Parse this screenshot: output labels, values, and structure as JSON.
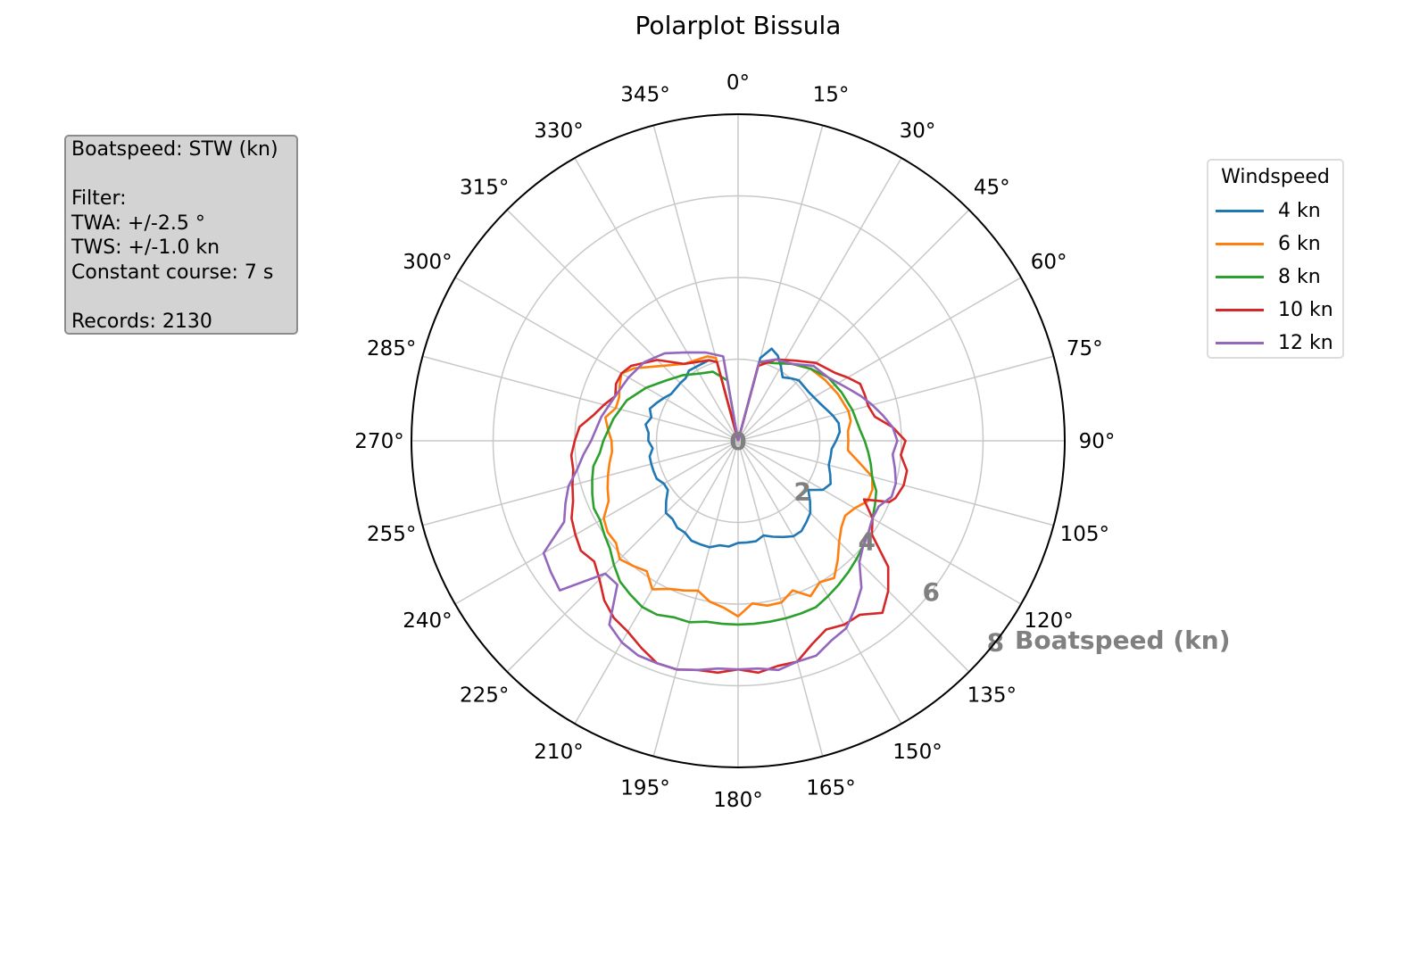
{
  "chart_data": {
    "type": "line",
    "polar": true,
    "title": "Polarplot Bissula",
    "radial_axis_label": "Boatspeed (kn)",
    "radial_ticks": [
      0,
      2,
      4,
      6,
      8
    ],
    "rlim": [
      0,
      8
    ],
    "angle_ticks": [
      "0°",
      "15°",
      "30°",
      "45°",
      "60°",
      "75°",
      "90°",
      "105°",
      "120°",
      "135°",
      "150°",
      "165°",
      "180°",
      "195°",
      "210°",
      "225°",
      "240°",
      "255°",
      "270°",
      "285°",
      "300°",
      "315°",
      "330°",
      "345°"
    ],
    "theta_zero": "top",
    "theta_direction": "clockwise",
    "grid": true,
    "legend": {
      "title": "Windspeed",
      "placement": "right"
    },
    "series": [
      {
        "name": "4 kn",
        "color": "#1f77b4",
        "x": [
          0,
          15,
          20,
          25,
          30,
          35,
          40,
          45,
          55,
          65,
          75,
          80,
          85,
          90,
          95,
          100,
          105,
          110,
          115,
          120,
          125,
          130,
          135,
          140,
          145,
          150,
          155,
          160,
          165,
          170,
          175,
          180,
          185,
          190,
          195,
          200,
          205,
          210,
          215,
          220,
          225,
          230,
          235,
          240,
          245,
          250,
          255,
          260,
          265,
          270,
          275,
          280,
          285,
          290,
          295,
          300,
          305,
          315,
          320,
          325,
          340,
          345,
          360
        ],
        "y": [
          0,
          2.1,
          2.4,
          2.3,
          2.1,
          1.9,
          2.0,
          2.1,
          2.1,
          2.2,
          2.4,
          2.5,
          2.5,
          2.4,
          2.3,
          2.3,
          2.3,
          2.4,
          2.5,
          2.4,
          2.1,
          2.3,
          2.5,
          2.6,
          2.7,
          2.7,
          2.6,
          2.5,
          2.4,
          2.5,
          2.5,
          2.5,
          2.6,
          2.6,
          2.7,
          2.7,
          2.7,
          2.6,
          2.6,
          2.5,
          2.5,
          2.3,
          2.1,
          2.1,
          2.2,
          2.2,
          2.2,
          2.2,
          2.1,
          2.2,
          2.2,
          2.3,
          2.2,
          2.3,
          2.2,
          2.1,
          2.0,
          2.0,
          2.0,
          2.1,
          2.1,
          2.0,
          0
        ]
      },
      {
        "name": "6 kn",
        "color": "#ff7f0e",
        "x": [
          0,
          15,
          25,
          35,
          45,
          55,
          65,
          75,
          80,
          85,
          90,
          95,
          100,
          105,
          110,
          115,
          120,
          125,
          130,
          135,
          140,
          145,
          150,
          155,
          160,
          165,
          170,
          175,
          180,
          185,
          190,
          195,
          200,
          205,
          210,
          215,
          220,
          225,
          230,
          235,
          240,
          245,
          250,
          255,
          260,
          265,
          270,
          275,
          280,
          285,
          290,
          295,
          300,
          305,
          315,
          325,
          340,
          345,
          360
        ],
        "y": [
          0,
          1.9,
          2.2,
          2.3,
          2.5,
          2.6,
          2.7,
          2.8,
          2.8,
          2.7,
          2.7,
          2.7,
          3.0,
          3.4,
          3.5,
          3.5,
          3.3,
          3.2,
          3.3,
          3.5,
          3.8,
          4.1,
          4.0,
          4.2,
          3.9,
          4.1,
          4.1,
          4.0,
          4.3,
          4.1,
          4.0,
          3.8,
          3.9,
          4.0,
          4.2,
          3.9,
          4.0,
          4.1,
          3.9,
          3.9,
          3.8,
          3.5,
          3.4,
          3.3,
          3.2,
          3.1,
          3.1,
          3.2,
          3.3,
          3.1,
          3.1,
          3.2,
          3.3,
          3.1,
          2.6,
          2.3,
          2.2,
          2.1,
          0
        ]
      },
      {
        "name": "8 kn",
        "color": "#2ca02c",
        "x": [
          0,
          15,
          25,
          35,
          45,
          55,
          65,
          75,
          85,
          90,
          95,
          100,
          105,
          110,
          115,
          120,
          125,
          130,
          135,
          140,
          145,
          150,
          155,
          160,
          165,
          170,
          175,
          180,
          185,
          190,
          195,
          200,
          205,
          210,
          215,
          220,
          225,
          230,
          235,
          240,
          245,
          250,
          255,
          260,
          265,
          270,
          280,
          290,
          300,
          310,
          320,
          330,
          340,
          350,
          360
        ],
        "y": [
          0,
          2.0,
          2.1,
          2.3,
          2.5,
          2.7,
          2.8,
          2.9,
          3.0,
          3.1,
          3.2,
          3.3,
          3.4,
          3.6,
          3.7,
          3.8,
          3.9,
          4.0,
          4.1,
          4.2,
          4.3,
          4.4,
          4.5,
          4.5,
          4.5,
          4.5,
          4.5,
          4.5,
          4.5,
          4.5,
          4.6,
          4.6,
          4.7,
          4.7,
          4.6,
          4.5,
          4.3,
          4.1,
          4.0,
          3.9,
          3.9,
          3.8,
          3.7,
          3.6,
          3.4,
          3.3,
          3.1,
          2.9,
          2.6,
          2.3,
          2.1,
          1.9,
          1.8,
          1.5,
          0
        ]
      },
      {
        "name": "10 kn",
        "color": "#d62728",
        "x": [
          0,
          15,
          25,
          35,
          45,
          55,
          60,
          65,
          70,
          75,
          80,
          85,
          90,
          95,
          100,
          105,
          110,
          112,
          115,
          120,
          125,
          130,
          135,
          140,
          145,
          150,
          155,
          160,
          165,
          170,
          175,
          180,
          185,
          190,
          195,
          200,
          205,
          210,
          215,
          220,
          225,
          230,
          235,
          240,
          245,
          250,
          255,
          260,
          265,
          270,
          275,
          280,
          285,
          290,
          295,
          300,
          305,
          315,
          325,
          340,
          345,
          360
        ],
        "y": [
          0,
          1.9,
          2.2,
          2.4,
          2.7,
          2.9,
          3.1,
          3.3,
          3.3,
          3.3,
          3.4,
          3.8,
          4.1,
          4.0,
          4.2,
          4.2,
          4.1,
          4.0,
          3.4,
          3.8,
          4.0,
          4.8,
          5.2,
          5.5,
          5.2,
          5.2,
          5.1,
          5.3,
          5.6,
          5.6,
          5.7,
          5.6,
          5.7,
          5.7,
          5.8,
          5.8,
          5.6,
          5.4,
          5.3,
          5.1,
          4.8,
          4.6,
          4.7,
          4.6,
          4.5,
          4.3,
          4.2,
          4.1,
          4.1,
          4.0,
          3.9,
          3.6,
          3.4,
          3.2,
          3.3,
          3.3,
          3.2,
          2.8,
          2.3,
          2.1,
          2.0,
          0
        ]
      },
      {
        "name": "12 kn",
        "color": "#9467bd",
        "x": [
          0,
          15,
          25,
          35,
          45,
          55,
          65,
          70,
          75,
          80,
          85,
          90,
          95,
          100,
          105,
          110,
          115,
          120,
          125,
          130,
          135,
          140,
          145,
          150,
          155,
          160,
          165,
          170,
          175,
          180,
          185,
          190,
          195,
          200,
          205,
          210,
          215,
          220,
          225,
          230,
          235,
          240,
          245,
          250,
          255,
          260,
          265,
          270,
          280,
          290,
          300,
          310,
          320,
          330,
          340,
          350,
          360
        ],
        "y": [
          0,
          2.0,
          2.2,
          2.3,
          2.6,
          2.7,
          3.0,
          3.2,
          3.4,
          3.6,
          3.8,
          3.9,
          3.8,
          3.9,
          4.0,
          4.0,
          3.8,
          3.8,
          3.9,
          4.0,
          4.2,
          4.7,
          5.0,
          5.3,
          5.4,
          5.6,
          5.6,
          5.7,
          5.6,
          5.6,
          5.6,
          5.7,
          5.8,
          5.8,
          5.8,
          5.7,
          5.5,
          4.6,
          4.6,
          5.7,
          5.6,
          5.5,
          4.7,
          4.5,
          4.3,
          4.0,
          3.8,
          3.6,
          3.4,
          3.2,
          3.1,
          3.0,
          2.8,
          2.5,
          2.3,
          2.1,
          0
        ]
      }
    ]
  },
  "infobox": {
    "lines": [
      "Boatspeed: STW (kn)",
      "",
      "Filter:",
      "TWA: +/-2.5 °",
      "TWS: +/-1.0 kn",
      "Constant course: 7 s",
      "",
      "Records: 2130"
    ]
  }
}
